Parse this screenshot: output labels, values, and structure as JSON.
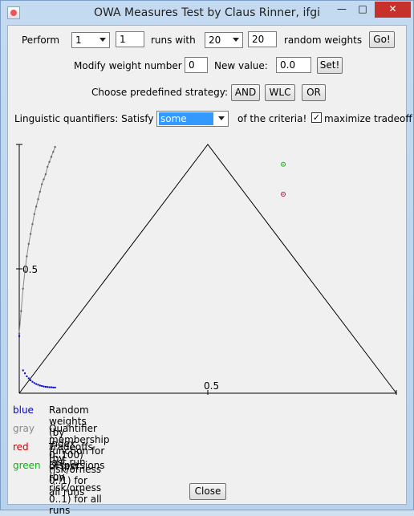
{
  "window": {
    "title": "OWA Measures Test by Claus Rinner, ifgi"
  },
  "controls": {
    "perform_label": "Perform",
    "runs_combo_value": "1",
    "runs_field_value": "1",
    "runs_with_label": "runs with",
    "weights_combo_value": "20",
    "weights_field_value": "20",
    "random_weights_label": "random weights",
    "go_button": "Go!",
    "modify_label": "Modify weight number",
    "weight_number_value": "0",
    "new_value_label": "New value:",
    "new_value_value": "0.0",
    "set_button": "Set!",
    "strategy_label": "Choose predefined strategy:",
    "strategy_buttons": [
      "AND",
      "WLC",
      "OR"
    ],
    "quantifier_label": "Linguistic quantifiers: Satisfy",
    "quantifier_value": "some",
    "criteria_label": "of the criteria!",
    "maximize_label": "maximize tradeoff",
    "maximize_checked": true
  },
  "chart_data": {
    "type": "scatter",
    "y_tick_label": "0.5",
    "x_tick_label": "0.5",
    "xlim": [
      0,
      1
    ],
    "ylim": [
      0,
      1
    ],
    "membership_function": {
      "x": [
        0.0,
        0.005,
        0.01,
        0.015,
        0.02,
        0.025,
        0.03,
        0.035,
        0.04,
        0.045,
        0.05,
        0.055,
        0.06,
        0.065,
        0.07,
        0.075,
        0.08,
        0.085,
        0.09,
        0.095
      ],
      "y": [
        0.24,
        0.33,
        0.42,
        0.49,
        0.55,
        0.6,
        0.64,
        0.68,
        0.72,
        0.75,
        0.78,
        0.81,
        0.84,
        0.86,
        0.88,
        0.91,
        0.93,
        0.95,
        0.97,
        0.99
      ]
    },
    "random_weights": {
      "x": [
        0.01,
        0.015,
        0.02,
        0.025,
        0.03,
        0.035,
        0.04,
        0.045,
        0.05,
        0.055,
        0.06,
        0.065,
        0.07,
        0.075,
        0.08,
        0.085,
        0.09,
        0.095
      ],
      "y": [
        0.092,
        0.08,
        0.068,
        0.06,
        0.052,
        0.046,
        0.041,
        0.037,
        0.034,
        0.031,
        0.029,
        0.027,
        0.026,
        0.025,
        0.024,
        0.024,
        0.023,
        0.023
      ]
    },
    "tradeoffs": [
      {
        "x": 0.7,
        "y": 0.8
      }
    ],
    "dispersions": [
      {
        "x": 0.7,
        "y": 0.92
      }
    ],
    "random_weights_first_point": {
      "x": 0.0,
      "y": 0.23
    }
  },
  "legend": [
    {
      "key": "blue",
      "color": "#0000cc",
      "text": "Random weights (by index 0..100) of last run"
    },
    {
      "key": "gray",
      "color": "#888888",
      "text": "Quantifier membership function for last run"
    },
    {
      "key": "red",
      "color": "#cc0000",
      "text": "Tradeoffs (by risk/orness 0..1) for all runs"
    },
    {
      "key": "green",
      "color": "#00bb00",
      "text": "Dispersions (by risk/orness 0..1) for all runs"
    }
  ],
  "footer": {
    "close_button": "Close"
  }
}
